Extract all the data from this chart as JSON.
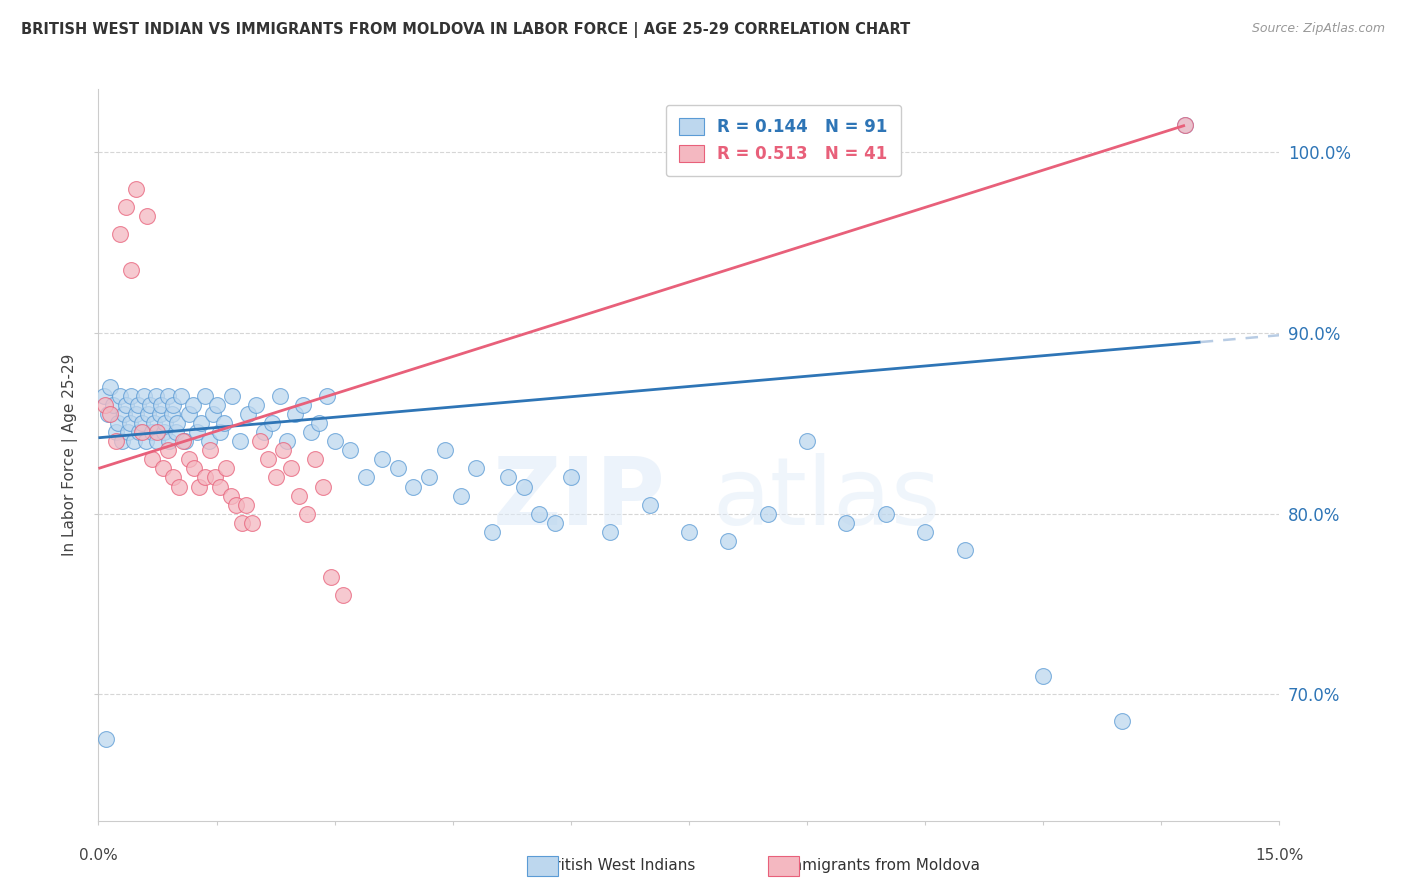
{
  "title": "BRITISH WEST INDIAN VS IMMIGRANTS FROM MOLDOVA IN LABOR FORCE | AGE 25-29 CORRELATION CHART",
  "source": "Source: ZipAtlas.com",
  "ylabel": "In Labor Force | Age 25-29",
  "xmin": 0.0,
  "xmax": 15.0,
  "ymin": 63.0,
  "ymax": 103.5,
  "yticks": [
    70.0,
    80.0,
    90.0,
    100.0
  ],
  "ytick_labels": [
    "70.0%",
    "80.0%",
    "90.0%",
    "100.0%"
  ],
  "legend_r1": "R = 0.144",
  "legend_n1": "N = 91",
  "legend_r2": "R = 0.513",
  "legend_n2": "N = 41",
  "color_blue_fill": "#BDD7EE",
  "color_blue_edge": "#5B9BD5",
  "color_blue_line": "#2E75B6",
  "color_pink_fill": "#F4B8C1",
  "color_pink_edge": "#E8607A",
  "color_pink_line": "#E8607A",
  "color_dashed": "#B8CCE4",
  "watermark_zip": "ZIP",
  "watermark_atlas": "atlas",
  "blue_x": [
    0.07,
    0.12,
    0.15,
    0.18,
    0.22,
    0.25,
    0.28,
    0.3,
    0.33,
    0.35,
    0.38,
    0.4,
    0.42,
    0.45,
    0.48,
    0.5,
    0.52,
    0.55,
    0.58,
    0.6,
    0.63,
    0.65,
    0.68,
    0.7,
    0.73,
    0.75,
    0.78,
    0.8,
    0.83,
    0.85,
    0.88,
    0.9,
    0.93,
    0.95,
    0.98,
    1.0,
    1.05,
    1.1,
    1.15,
    1.2,
    1.25,
    1.3,
    1.35,
    1.4,
    1.45,
    1.5,
    1.55,
    1.6,
    1.7,
    1.8,
    1.9,
    2.0,
    2.1,
    2.2,
    2.3,
    2.4,
    2.5,
    2.6,
    2.7,
    2.8,
    2.9,
    3.0,
    3.2,
    3.4,
    3.6,
    3.8,
    4.0,
    4.2,
    4.4,
    4.6,
    4.8,
    5.0,
    5.2,
    5.4,
    5.6,
    5.8,
    6.0,
    6.5,
    7.0,
    7.5,
    8.0,
    8.5,
    9.0,
    9.5,
    10.0,
    10.5,
    11.0,
    12.0,
    13.0,
    13.8,
    0.1
  ],
  "blue_y": [
    86.5,
    85.5,
    87.0,
    86.0,
    84.5,
    85.0,
    86.5,
    84.0,
    85.5,
    86.0,
    84.5,
    85.0,
    86.5,
    84.0,
    85.5,
    86.0,
    84.5,
    85.0,
    86.5,
    84.0,
    85.5,
    86.0,
    84.5,
    85.0,
    86.5,
    84.0,
    85.5,
    86.0,
    84.5,
    85.0,
    86.5,
    84.0,
    85.5,
    86.0,
    84.5,
    85.0,
    86.5,
    84.0,
    85.5,
    86.0,
    84.5,
    85.0,
    86.5,
    84.0,
    85.5,
    86.0,
    84.5,
    85.0,
    86.5,
    84.0,
    85.5,
    86.0,
    84.5,
    85.0,
    86.5,
    84.0,
    85.5,
    86.0,
    84.5,
    85.0,
    86.5,
    84.0,
    83.5,
    82.0,
    83.0,
    82.5,
    81.5,
    82.0,
    83.5,
    81.0,
    82.5,
    79.0,
    82.0,
    81.5,
    80.0,
    79.5,
    82.0,
    79.0,
    80.5,
    79.0,
    78.5,
    80.0,
    84.0,
    79.5,
    80.0,
    79.0,
    78.0,
    71.0,
    68.5,
    101.5,
    67.5
  ],
  "pink_x": [
    0.08,
    0.15,
    0.22,
    0.28,
    0.35,
    0.42,
    0.48,
    0.55,
    0.62,
    0.68,
    0.75,
    0.82,
    0.88,
    0.95,
    1.02,
    1.08,
    1.15,
    1.22,
    1.28,
    1.35,
    1.42,
    1.48,
    1.55,
    1.62,
    1.68,
    1.75,
    1.82,
    1.88,
    1.95,
    2.05,
    2.15,
    2.25,
    2.35,
    2.45,
    2.55,
    2.65,
    2.75,
    2.85,
    2.95,
    3.1,
    13.8
  ],
  "pink_y": [
    86.0,
    85.5,
    84.0,
    95.5,
    97.0,
    93.5,
    98.0,
    84.5,
    96.5,
    83.0,
    84.5,
    82.5,
    83.5,
    82.0,
    81.5,
    84.0,
    83.0,
    82.5,
    81.5,
    82.0,
    83.5,
    82.0,
    81.5,
    82.5,
    81.0,
    80.5,
    79.5,
    80.5,
    79.5,
    84.0,
    83.0,
    82.0,
    83.5,
    82.5,
    81.0,
    80.0,
    83.0,
    81.5,
    76.5,
    75.5,
    101.5
  ],
  "blue_line_x0": 0.0,
  "blue_line_x1": 14.0,
  "blue_line_y0": 84.2,
  "blue_line_y1": 89.5,
  "pink_line_x0": 0.0,
  "pink_line_x1": 13.8,
  "pink_line_y0": 82.5,
  "pink_line_y1": 101.5,
  "blue_solid_end": 14.0,
  "pink_solid_end": 13.8
}
